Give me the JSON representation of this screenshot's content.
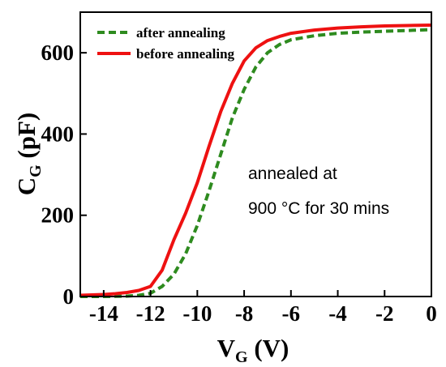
{
  "chart_data": {
    "type": "line",
    "xlabel": {
      "main": "V",
      "sub": "G",
      "unit": "(V)"
    },
    "ylabel": {
      "main": "C",
      "sub": "G",
      "unit": "(pF)"
    },
    "xlim": [
      -15,
      0
    ],
    "ylim": [
      0,
      700
    ],
    "xticks": [
      -14,
      -12,
      -10,
      -8,
      -6,
      -4,
      -2,
      0
    ],
    "yticks": [
      0,
      200,
      400,
      600
    ],
    "xtick_labels": [
      "-14",
      "-12",
      "-10",
      "-8",
      "-6",
      "-4",
      "-2",
      "0"
    ],
    "ytick_labels": [
      "0",
      "200",
      "400",
      "600"
    ],
    "legend_position": "top-left",
    "annotation": [
      "annealed at",
      "900 °C for 30 mins"
    ],
    "series": [
      {
        "name": "after annealing",
        "color": "#2e8b1f",
        "style": "dashed",
        "x": [
          -15,
          -14,
          -13,
          -12.5,
          -12,
          -11.5,
          -11,
          -10.5,
          -10,
          -9.5,
          -9,
          -8.5,
          -8,
          -7.5,
          -7,
          -6.5,
          -6,
          -5,
          -4,
          -3,
          -2,
          -1,
          0
        ],
        "y": [
          0,
          0,
          1,
          3,
          8,
          25,
          55,
          105,
          175,
          260,
          350,
          440,
          510,
          565,
          600,
          620,
          632,
          642,
          648,
          651,
          653,
          655,
          657
        ]
      },
      {
        "name": "before annealing",
        "color": "#ee1111",
        "style": "solid",
        "x": [
          -15,
          -14.5,
          -14,
          -13.5,
          -13,
          -12.5,
          -12,
          -11.5,
          -11,
          -10.5,
          -10,
          -9.5,
          -9,
          -8.5,
          -8,
          -7.5,
          -7,
          -6.5,
          -6,
          -5,
          -4,
          -3,
          -2,
          -1,
          0
        ],
        "y": [
          3,
          4,
          5,
          7,
          10,
          15,
          25,
          65,
          140,
          205,
          280,
          370,
          455,
          525,
          580,
          612,
          630,
          640,
          648,
          656,
          661,
          664,
          666,
          667,
          668
        ]
      }
    ]
  }
}
